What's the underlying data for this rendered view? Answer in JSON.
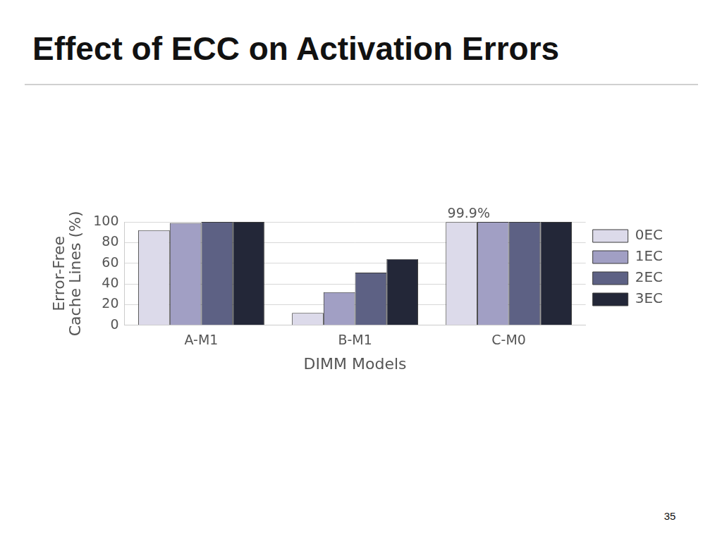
{
  "slide": {
    "title": "Effect of ECC on Activation Errors",
    "page_number": "35"
  },
  "chart_data": {
    "type": "bar",
    "categories": [
      "A-M1",
      "B-M1",
      "C-M0"
    ],
    "series": [
      {
        "name": "0EC",
        "color": "#dcdaea",
        "values": [
          92,
          12,
          99.9
        ]
      },
      {
        "name": "1EC",
        "color": "#a19fc4",
        "values": [
          99,
          32,
          100
        ]
      },
      {
        "name": "2EC",
        "color": "#5d6184",
        "values": [
          100,
          51,
          100
        ]
      },
      {
        "name": "3EC",
        "color": "#232738",
        "values": [
          100,
          64,
          100
        ]
      }
    ],
    "x_label": "DIMM Models",
    "y_label": [
      "Error-Free",
      "Cache Lines (%)"
    ],
    "ylim": [
      0,
      100
    ],
    "yticks": [
      0,
      20,
      40,
      60,
      80,
      100
    ],
    "grid": true,
    "legend": "right",
    "annotations": [
      {
        "text": "99.9%",
        "category": "C-M0",
        "series": "0EC"
      }
    ]
  }
}
